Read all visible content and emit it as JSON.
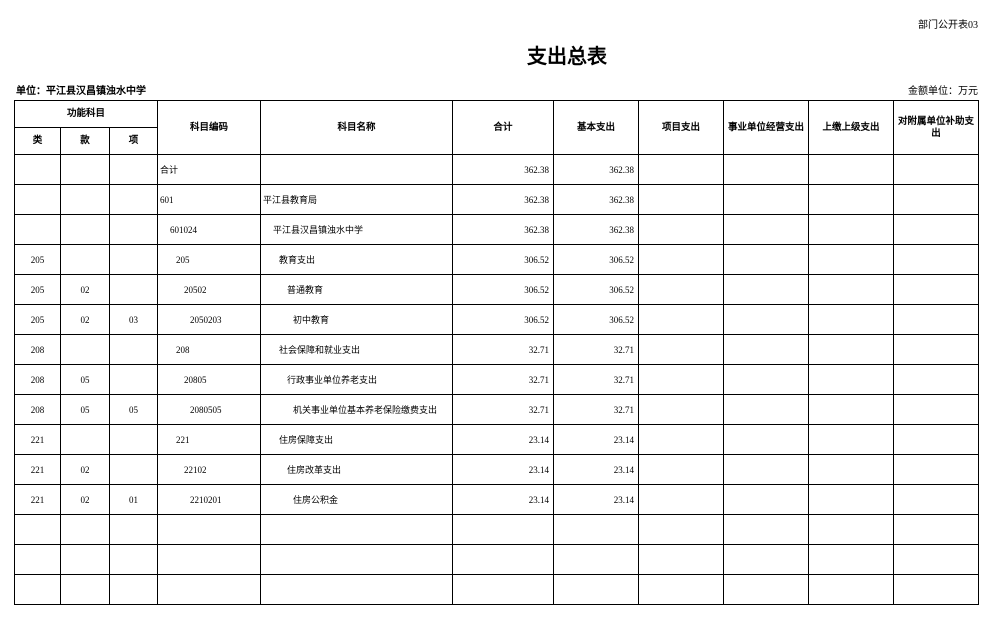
{
  "header": {
    "form_no": "部门公开表03",
    "title": "支出总表",
    "unit": "单位：平江县汉昌镇浊水中学",
    "currency_unit": "金额单位：万元"
  },
  "table": {
    "group_header": "功能科目",
    "sub_headers": [
      "类",
      "款",
      "项"
    ],
    "columns": [
      "科目编码",
      "科目名称",
      "合计",
      "基本支出",
      "项目支出",
      "事业单位经营支出",
      "上缴上级支出",
      "对附属单位补助支出"
    ],
    "rows": [
      {
        "code": "合计",
        "total": 362.38,
        "basic": 362.38
      },
      {
        "code": "601",
        "name": "平江县教育局",
        "total": 362.38,
        "basic": 362.38
      },
      {
        "code": "601024",
        "name": "平江县汉昌镇浊水中学",
        "total": 362.38,
        "basic": 362.38
      },
      {
        "lei": "205",
        "code": "205",
        "name": "教育支出",
        "total": 306.52,
        "basic": 306.52
      },
      {
        "lei": "205",
        "kuan": "02",
        "code": "20502",
        "name": "普通教育",
        "total": 306.52,
        "basic": 306.52
      },
      {
        "lei": "205",
        "kuan": "02",
        "xiang": "03",
        "code": "2050203",
        "name": "初中教育",
        "total": 306.52,
        "basic": 306.52
      },
      {
        "lei": "208",
        "code": "208",
        "name": "社会保障和就业支出",
        "total": 32.71,
        "basic": 32.71
      },
      {
        "lei": "208",
        "kuan": "05",
        "code": "20805",
        "name": "行政事业单位养老支出",
        "total": 32.71,
        "basic": 32.71
      },
      {
        "lei": "208",
        "kuan": "05",
        "xiang": "05",
        "code": "2080505",
        "name": "机关事业单位基本养老保险缴费支出",
        "total": 32.71,
        "basic": 32.71
      },
      {
        "lei": "221",
        "code": "221",
        "name": "住房保障支出",
        "total": 23.14,
        "basic": 23.14
      },
      {
        "lei": "221",
        "kuan": "02",
        "code": "22102",
        "name": "住房改革支出",
        "total": 23.14,
        "basic": 23.14
      },
      {
        "lei": "221",
        "kuan": "02",
        "xiang": "01",
        "code": "2210201",
        "name": "住房公积金",
        "total": 23.14,
        "basic": 23.14
      }
    ]
  }
}
